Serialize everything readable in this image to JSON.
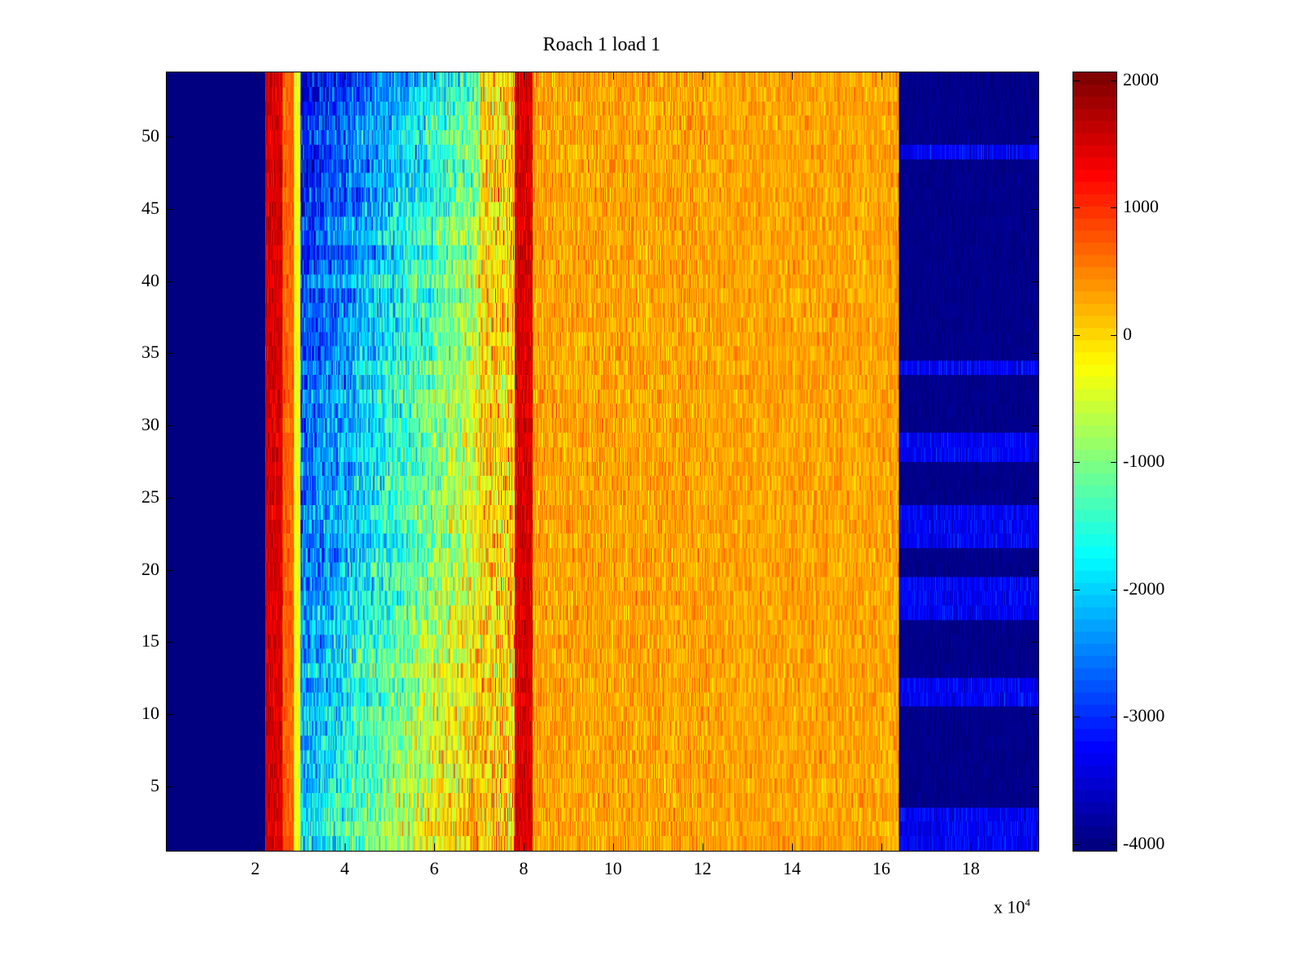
{
  "chart_data": {
    "type": "heatmap",
    "title": "Roach 1 load 1",
    "xlabel": "",
    "ylabel": "",
    "x_multiplier": "x 10",
    "x_multiplier_exp": "4",
    "xlim": [
      0,
      19.53
    ],
    "ylim": [
      0.5,
      54.5
    ],
    "rows": 54,
    "xticks": [
      2,
      4,
      6,
      8,
      10,
      12,
      14,
      16,
      18
    ],
    "yticks": [
      5,
      10,
      15,
      20,
      25,
      30,
      35,
      40,
      45,
      50
    ],
    "colormap": "jet",
    "clim": [
      -4060,
      2070
    ],
    "colorbar_ticks": [
      2000,
      1000,
      0,
      -1000,
      -2000,
      -3000,
      -4000
    ],
    "column_bands": [
      {
        "x_from": 0,
        "x_to": 2.2,
        "mean": -4000,
        "noise": 0
      },
      {
        "x_from": 2.2,
        "x_to": 2.6,
        "mean": 1500,
        "noise": 300
      },
      {
        "x_from": 2.6,
        "x_to": 2.85,
        "mean": 700,
        "noise": 300
      },
      {
        "x_from": 2.85,
        "x_to": 3.0,
        "mean": -300,
        "noise": 250
      },
      {
        "x_from": 3.0,
        "x_to": 7.0,
        "mean_start": -2700,
        "mean_end": -400,
        "noise": 900
      },
      {
        "x_from": 7.0,
        "x_to": 7.8,
        "mean": 0,
        "noise": 900
      },
      {
        "x_from": 7.8,
        "x_to": 8.2,
        "mean": 1500,
        "noise": 300
      },
      {
        "x_from": 8.2,
        "x_to": 16.4,
        "mean": 300,
        "noise": 350
      },
      {
        "x_from": 16.4,
        "x_to": 19.53,
        "mean": -3950,
        "noise": 80
      }
    ],
    "right_band_bright_rows": [
      1,
      2,
      3,
      11,
      12,
      17,
      18,
      19,
      22,
      23,
      24,
      28,
      29,
      34,
      49
    ],
    "right_band_bright_value": -3300
  }
}
